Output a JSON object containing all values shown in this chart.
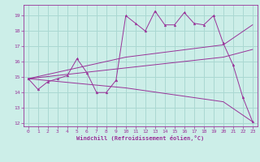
{
  "xlabel": "Windchill (Refroidissement éolien,°C)",
  "bg_color": "#cceee8",
  "grid_color": "#aad8d2",
  "line_color": "#993399",
  "xlim": [
    -0.5,
    23.5
  ],
  "ylim": [
    11.8,
    19.7
  ],
  "xticks": [
    0,
    1,
    2,
    3,
    4,
    5,
    6,
    7,
    8,
    9,
    10,
    11,
    12,
    13,
    14,
    15,
    16,
    17,
    18,
    19,
    20,
    21,
    22,
    23
  ],
  "yticks": [
    12,
    13,
    14,
    15,
    16,
    17,
    18,
    19
  ],
  "series0_x": [
    0,
    1,
    2,
    3,
    4,
    5,
    6,
    7,
    8,
    9,
    10,
    11,
    12,
    13,
    14,
    15,
    16,
    17,
    18,
    19,
    20,
    21,
    22,
    23
  ],
  "series0_y": [
    14.9,
    14.2,
    14.7,
    14.9,
    15.1,
    16.2,
    15.3,
    14.0,
    14.0,
    14.8,
    19.0,
    18.5,
    18.0,
    19.3,
    18.4,
    18.4,
    19.2,
    18.5,
    18.4,
    19.0,
    17.2,
    15.8,
    13.7,
    12.1
  ],
  "series1_x": [
    0,
    10,
    20,
    23
  ],
  "series1_y": [
    14.9,
    16.3,
    17.1,
    18.4
  ],
  "series2_x": [
    0,
    10,
    20,
    23
  ],
  "series2_y": [
    14.9,
    15.6,
    16.3,
    16.8
  ],
  "series3_x": [
    0,
    10,
    20,
    23
  ],
  "series3_y": [
    14.9,
    14.3,
    13.4,
    12.1
  ]
}
